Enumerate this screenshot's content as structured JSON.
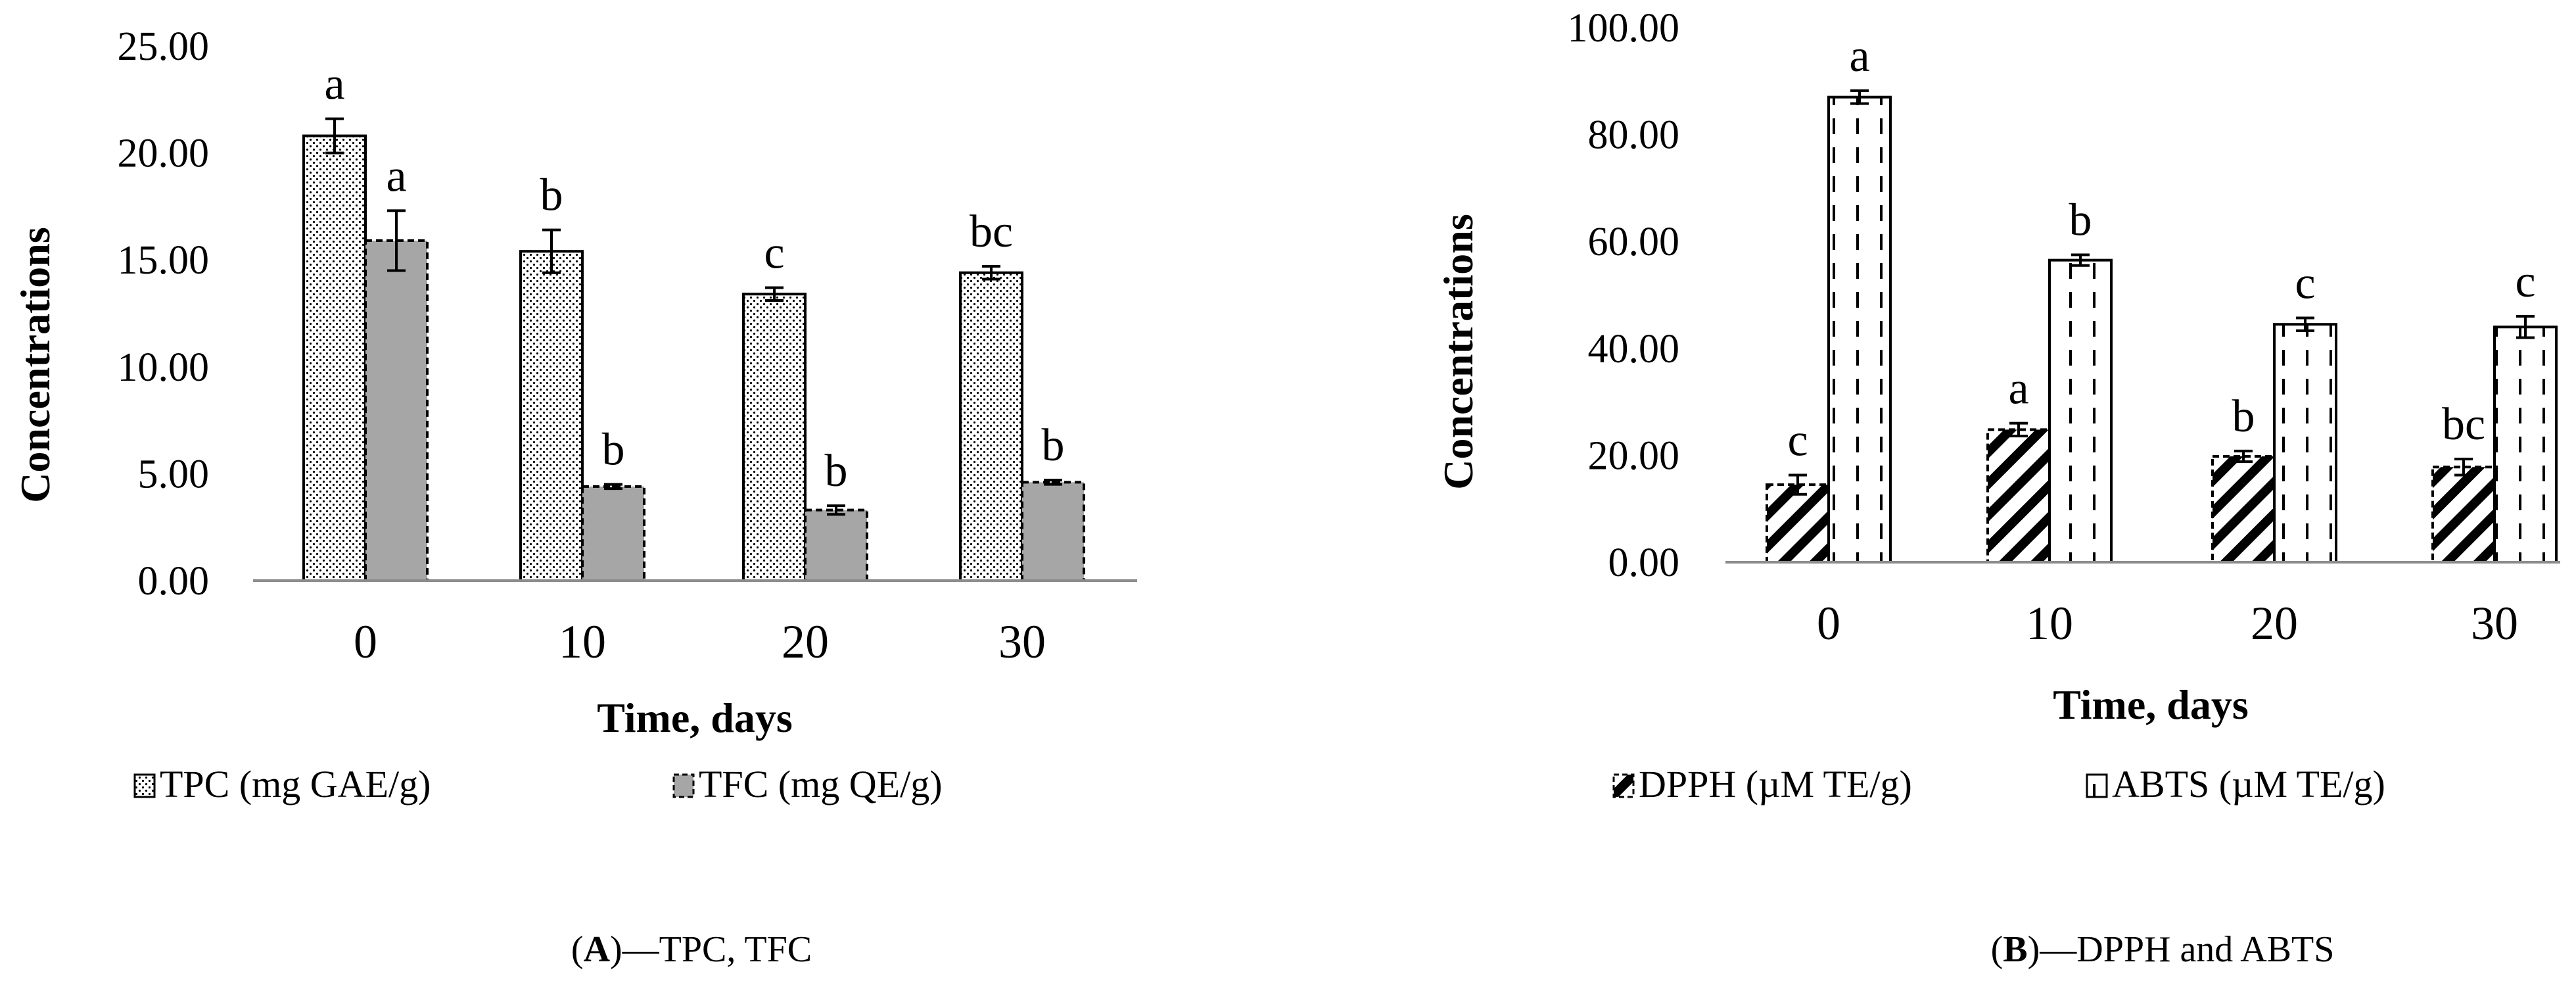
{
  "chart_data": [
    {
      "type": "bar",
      "panel_label": "A",
      "caption": "—TPC, TFC",
      "categories": [
        "0",
        "10",
        "20",
        "30"
      ],
      "xlabel": "Time, days",
      "ylabel": "Concentrations",
      "ylim": [
        0,
        25
      ],
      "yticks": [
        "0.00",
        "5.00",
        "10.00",
        "15.00",
        "20.00",
        "25.00"
      ],
      "grid": false,
      "series": [
        {
          "name": "TPC (mg GAE/g)",
          "pattern": "dots",
          "values": [
            20.8,
            15.4,
            13.4,
            14.4
          ],
          "errors": [
            0.8,
            1.0,
            0.3,
            0.3
          ],
          "letters": [
            "a",
            "b",
            "c",
            "bc"
          ]
        },
        {
          "name": "TFC (mg QE/g)",
          "pattern": "gray",
          "values": [
            15.9,
            4.4,
            3.3,
            4.6
          ],
          "errors": [
            1.4,
            0.1,
            0.2,
            0.1
          ],
          "letters": [
            "a",
            "b",
            "b",
            "b"
          ]
        }
      ]
    },
    {
      "type": "bar",
      "panel_label": "B",
      "caption": "—DPPH and ABTS",
      "categories": [
        "0",
        "10",
        "20",
        "30"
      ],
      "xlabel": "Time, days",
      "ylabel": "Concentrations",
      "ylim": [
        0,
        100
      ],
      "yticks": [
        "0.00",
        "20.00",
        "40.00",
        "60.00",
        "80.00",
        "100.00"
      ],
      "grid": false,
      "series": [
        {
          "name": "DPPH (µM TE/g)",
          "pattern": "diagonal",
          "values": [
            14.5,
            24.8,
            19.8,
            17.8
          ],
          "errors": [
            1.8,
            1.2,
            1.0,
            1.5
          ],
          "letters": [
            "c",
            "a",
            "b",
            "bc"
          ]
        },
        {
          "name": "ABTS (µM TE/g)",
          "pattern": "vdash",
          "values": [
            87.0,
            56.5,
            44.5,
            44.0
          ],
          "errors": [
            1.2,
            1.0,
            1.2,
            2.0
          ],
          "letters": [
            "a",
            "b",
            "c",
            "c"
          ]
        }
      ]
    }
  ]
}
